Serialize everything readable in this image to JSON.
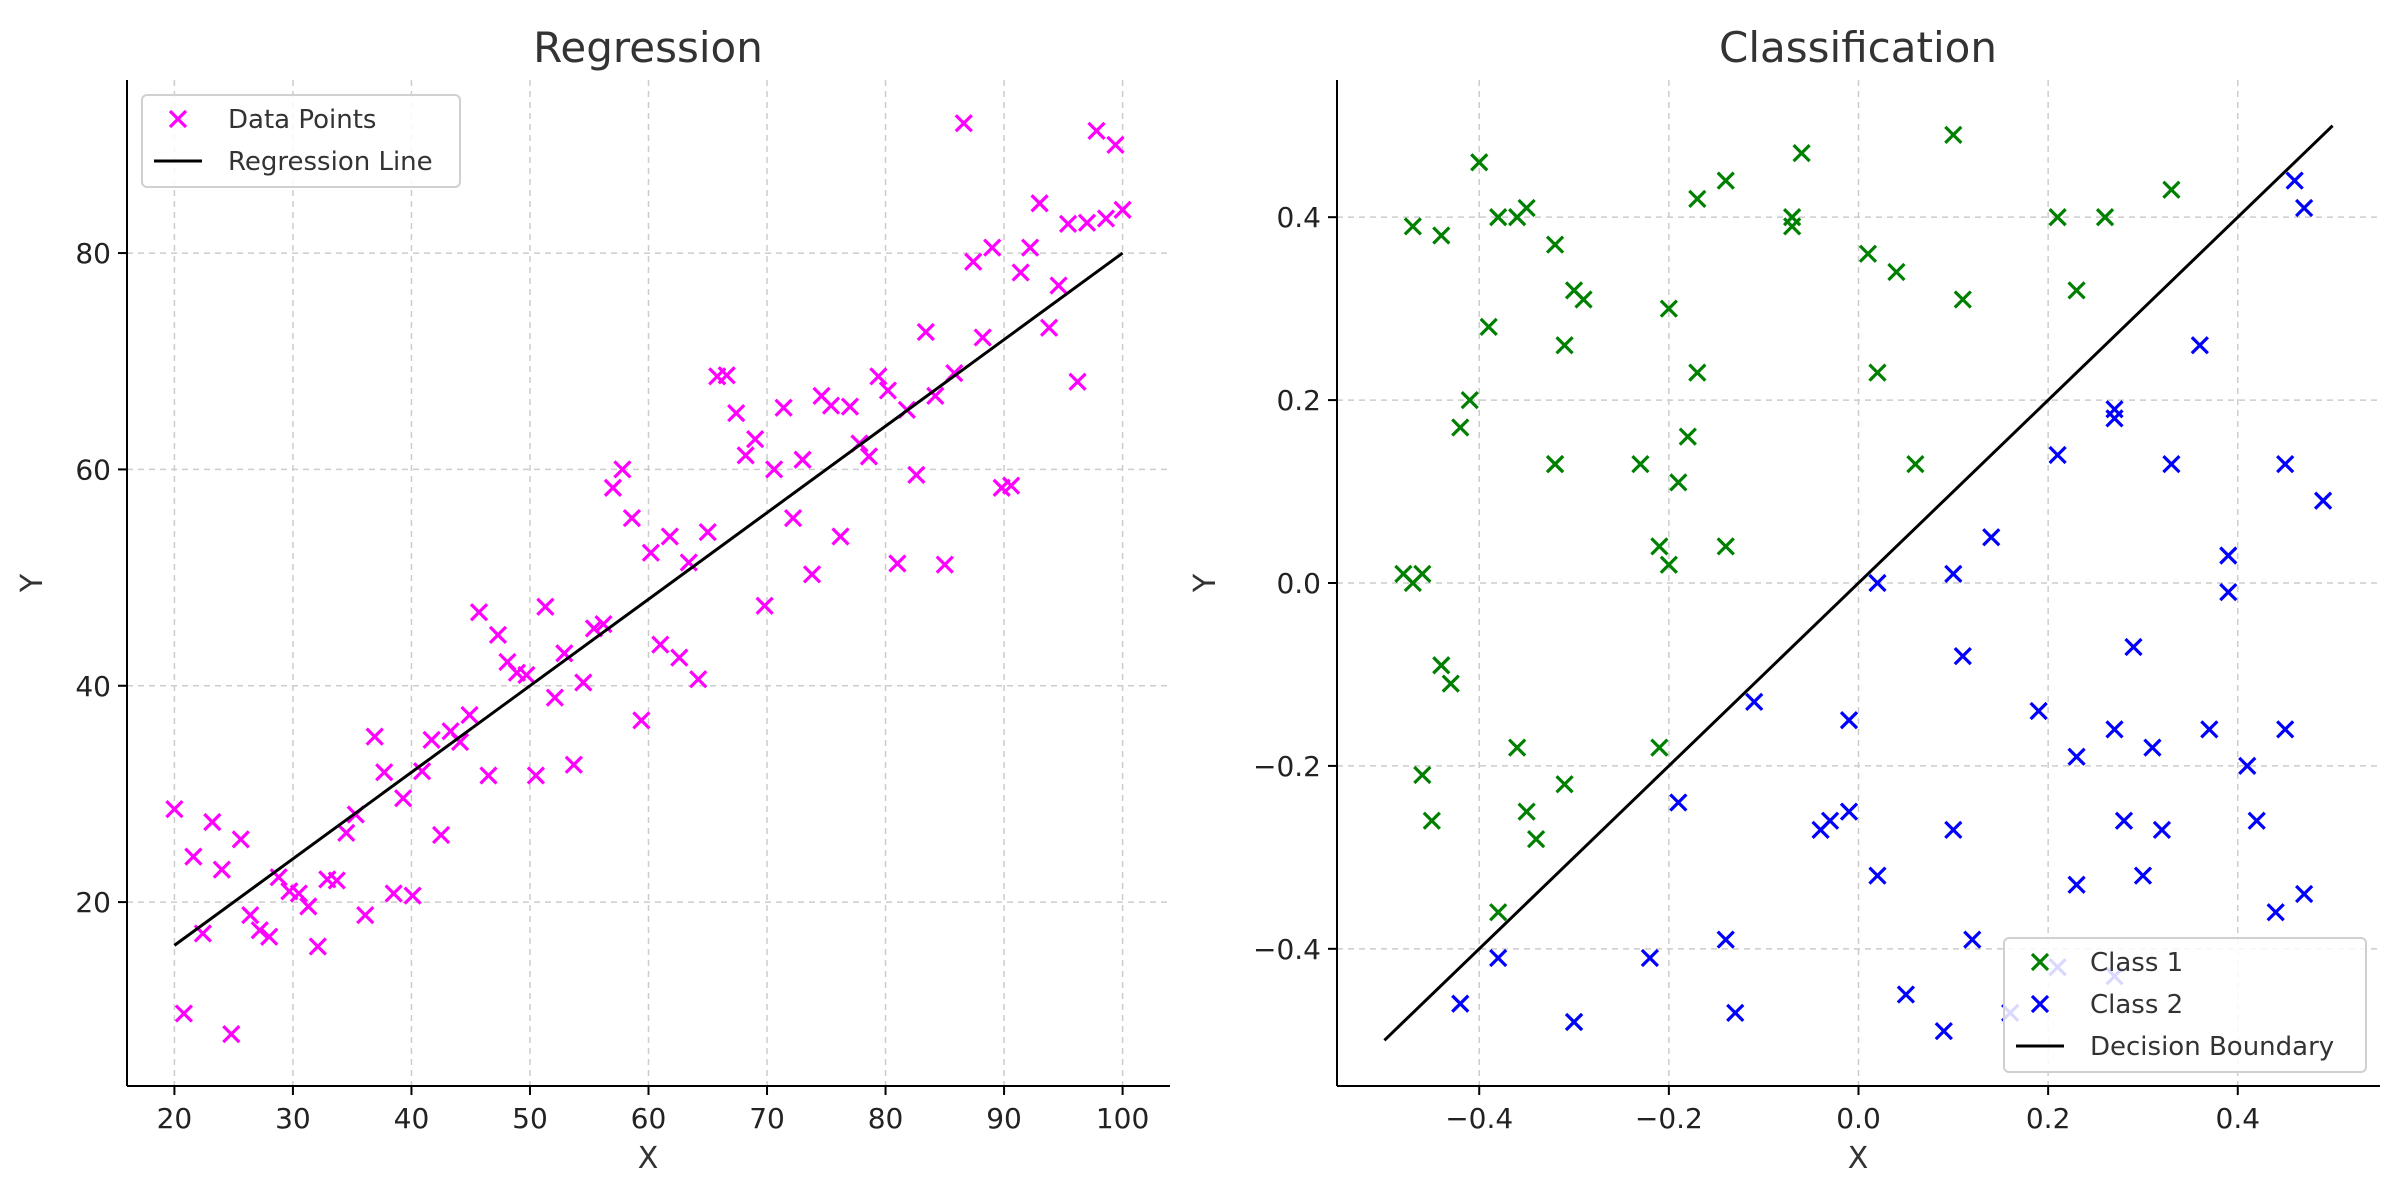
{
  "chart_data": [
    {
      "type": "scatter",
      "title": "Regression",
      "xlabel": "X",
      "ylabel": "Y",
      "xlim": [
        16,
        104
      ],
      "ylim": [
        3,
        96
      ],
      "xticks": [
        20,
        30,
        40,
        50,
        60,
        70,
        80,
        90,
        100
      ],
      "yticks": [
        20,
        40,
        60,
        80
      ],
      "grid": true,
      "legend_position": "top-left",
      "series": [
        {
          "name": "Data Points",
          "kind": "scatter",
          "marker": "x",
          "color": "#ff00ff",
          "x": [
            20.0,
            20.8,
            21.6,
            22.4,
            23.2,
            24.0,
            24.8,
            25.6,
            26.4,
            27.2,
            28.0,
            28.8,
            29.7,
            30.5,
            31.3,
            32.1,
            32.9,
            33.7,
            34.5,
            35.3,
            36.1,
            36.9,
            37.7,
            38.5,
            39.3,
            40.1,
            40.9,
            41.7,
            42.5,
            43.3,
            44.1,
            44.9,
            45.7,
            46.5,
            47.3,
            48.1,
            48.9,
            49.7,
            50.5,
            51.3,
            52.1,
            52.9,
            53.7,
            54.5,
            55.4,
            56.2,
            57.0,
            57.8,
            58.6,
            59.4,
            60.2,
            61.0,
            61.8,
            62.6,
            63.4,
            64.2,
            65.0,
            65.8,
            66.6,
            67.4,
            68.2,
            69.0,
            69.8,
            70.6,
            71.4,
            72.2,
            73.0,
            73.8,
            74.6,
            75.4,
            76.2,
            77.0,
            77.8,
            78.6,
            79.4,
            80.2,
            81.0,
            81.8,
            82.6,
            83.4,
            84.2,
            85.0,
            85.8,
            86.6,
            87.4,
            88.2,
            89.0,
            89.8,
            90.6,
            91.4,
            92.2,
            93.0,
            93.8,
            94.6,
            95.4,
            96.2,
            97.0,
            97.8,
            98.6,
            99.4,
            100.0
          ],
          "y": [
            28.6,
            9.7,
            24.2,
            17.1,
            27.4,
            23.0,
            7.8,
            25.8,
            18.8,
            17.4,
            16.8,
            22.3,
            21.0,
            20.8,
            19.6,
            15.9,
            22.1,
            22.0,
            26.4,
            28.1,
            18.8,
            35.3,
            32.0,
            20.8,
            29.6,
            20.6,
            32.1,
            35.0,
            26.2,
            35.8,
            34.8,
            37.3,
            46.8,
            31.7,
            44.7,
            42.2,
            41.2,
            41.0,
            31.7,
            47.3,
            38.9,
            43.0,
            32.7,
            40.3,
            45.3,
            45.7,
            58.3,
            60.0,
            55.5,
            36.8,
            52.3,
            43.8,
            53.8,
            42.6,
            51.4,
            40.6,
            54.2,
            68.6,
            68.7,
            65.2,
            61.3,
            62.8,
            47.4,
            60.0,
            65.7,
            55.5,
            60.9,
            50.3,
            66.8,
            65.9,
            53.8,
            65.8,
            62.4,
            61.2,
            68.6,
            67.3,
            51.3,
            65.5,
            59.5,
            72.7,
            66.8,
            51.2,
            68.9,
            92.0,
            79.2,
            72.2,
            80.5,
            58.3,
            58.5,
            78.2,
            80.5,
            84.6,
            73.1,
            77.0,
            82.7,
            68.1,
            82.8,
            91.3,
            83.2,
            90.0,
            84.0
          ]
        },
        {
          "name": "Regression Line",
          "kind": "line",
          "color": "#000000",
          "x": [
            20,
            100
          ],
          "y": [
            16,
            80
          ]
        }
      ]
    },
    {
      "type": "scatter",
      "title": "Classification",
      "xlabel": "X",
      "ylabel": "Y",
      "xlim": [
        -0.55,
        0.55
      ],
      "ylim": [
        -0.55,
        0.55
      ],
      "xticks": [
        -0.4,
        -0.2,
        0.0,
        0.2,
        0.4
      ],
      "yticks": [
        -0.4,
        -0.2,
        0.0,
        0.2,
        0.4
      ],
      "xtick_labels": [
        "−0.4",
        "−0.2",
        "0.0",
        "0.2",
        "0.4"
      ],
      "ytick_labels": [
        "−0.4",
        "−0.2",
        "0.0",
        "0.2",
        "0.4"
      ],
      "grid": true,
      "legend_position": "bottom-right",
      "series": [
        {
          "name": "Class 1",
          "kind": "scatter",
          "marker": "x",
          "color": "#008000",
          "x": [
            -0.48,
            -0.47,
            -0.46,
            -0.44,
            -0.44,
            -0.43,
            -0.42,
            -0.39,
            -0.41,
            -0.4,
            -0.38,
            -0.38,
            -0.36,
            -0.35,
            -0.35,
            -0.34,
            -0.32,
            -0.32,
            -0.31,
            -0.31,
            -0.3,
            -0.29,
            -0.23,
            -0.21,
            -0.2,
            -0.2,
            -0.19,
            -0.18,
            -0.17,
            -0.17,
            -0.14,
            -0.14,
            -0.07,
            -0.07,
            -0.06,
            0.01,
            0.02,
            0.04,
            0.06,
            0.1,
            0.11,
            0.21,
            0.23,
            0.26,
            0.33,
            -0.47,
            -0.46,
            -0.45,
            -0.36,
            -0.32,
            -0.3,
            -0.21
          ],
          "y": [
            0.01,
            0.39,
            -0.21,
            0.38,
            -0.09,
            -0.11,
            0.17,
            0.28,
            0.2,
            0.46,
            -0.36,
            0.4,
            0.4,
            0.41,
            -0.25,
            -0.28,
            0.37,
            0.13,
            0.26,
            -0.22,
            0.32,
            0.31,
            0.13,
            0.04,
            0.02,
            0.3,
            0.11,
            0.16,
            0.23,
            0.42,
            0.44,
            0.04,
            0.4,
            0.39,
            0.47,
            0.36,
            0.23,
            0.34,
            0.13,
            0.49,
            0.31,
            0.4,
            0.32,
            0.4,
            0.43,
            0.0,
            0.01,
            -0.26,
            -0.18,
            0.13,
            -0.48,
            -0.18
          ]
        },
        {
          "name": "Class 2",
          "kind": "scatter",
          "marker": "x",
          "color": "#0000ff",
          "x": [
            -0.42,
            -0.38,
            -0.3,
            -0.22,
            -0.19,
            -0.14,
            -0.13,
            -0.11,
            -0.04,
            -0.03,
            -0.01,
            -0.01,
            0.02,
            0.02,
            0.05,
            0.09,
            0.1,
            0.1,
            0.11,
            0.12,
            0.14,
            0.16,
            0.19,
            0.21,
            0.21,
            0.23,
            0.23,
            0.27,
            0.27,
            0.27,
            0.28,
            0.29,
            0.3,
            0.31,
            0.32,
            0.33,
            0.36,
            0.37,
            0.39,
            0.39,
            0.41,
            0.42,
            0.44,
            0.45,
            0.45,
            0.46,
            0.47,
            0.47,
            0.49,
            0.27
          ],
          "y": [
            -0.46,
            -0.41,
            -0.48,
            -0.41,
            -0.24,
            -0.39,
            -0.47,
            -0.13,
            -0.27,
            -0.26,
            -0.15,
            -0.25,
            0.0,
            -0.32,
            -0.45,
            -0.49,
            0.01,
            -0.27,
            -0.08,
            -0.39,
            0.05,
            -0.47,
            -0.14,
            0.14,
            -0.42,
            -0.19,
            -0.33,
            0.19,
            0.18,
            -0.16,
            -0.26,
            -0.07,
            -0.32,
            -0.18,
            -0.27,
            0.13,
            0.26,
            -0.16,
            0.03,
            -0.01,
            -0.2,
            -0.26,
            -0.36,
            0.13,
            -0.16,
            0.44,
            0.41,
            -0.34,
            0.09,
            -0.43
          ]
        },
        {
          "name": "Decision Boundary",
          "kind": "line",
          "color": "#000000",
          "x": [
            -0.5,
            0.5
          ],
          "y": [
            -0.5,
            0.5
          ]
        }
      ]
    }
  ]
}
